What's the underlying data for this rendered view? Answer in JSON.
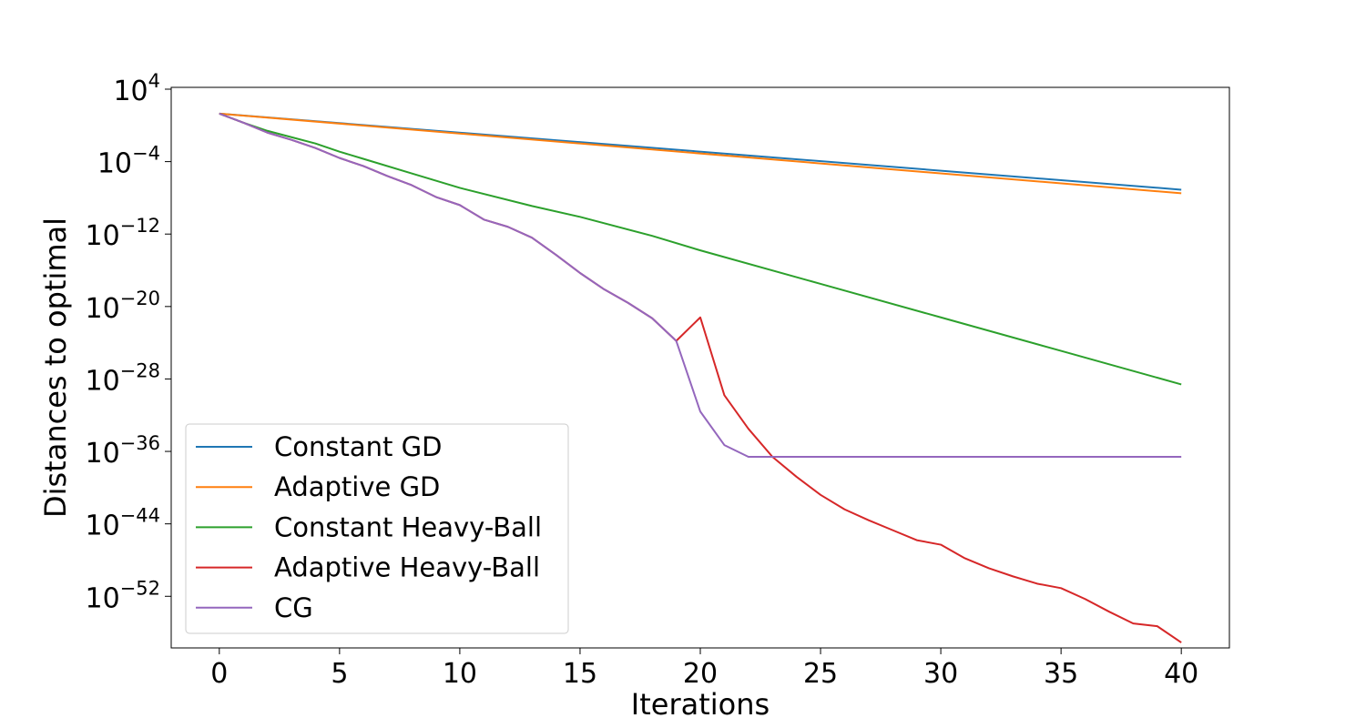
{
  "chart_data": {
    "type": "line",
    "xlabel": "Iterations",
    "ylabel": "Distances to optimal",
    "yscale": "log",
    "xlim": [
      -2,
      42
    ],
    "ylim_exponent": [
      4.2,
      -57.7
    ],
    "x_ticks": [
      0,
      5,
      10,
      15,
      20,
      25,
      30,
      35,
      40
    ],
    "y_ticks": [
      {
        "base": "10",
        "exp": "4",
        "value": 4
      },
      {
        "base": "10",
        "exp": "−4",
        "value": -4
      },
      {
        "base": "10",
        "exp": "−12",
        "value": -12
      },
      {
        "base": "10",
        "exp": "−20",
        "value": -20
      },
      {
        "base": "10",
        "exp": "−28",
        "value": -28
      },
      {
        "base": "10",
        "exp": "−36",
        "value": -36
      },
      {
        "base": "10",
        "exp": "−44",
        "value": -44
      },
      {
        "base": "10",
        "exp": "−52",
        "value": -52
      }
    ],
    "legend_position": "lower-left",
    "series": [
      {
        "name": "Constant GD",
        "color": "#1f77b4",
        "x": [
          0,
          40
        ],
        "log10_y": [
          1.3,
          -7.1
        ]
      },
      {
        "name": "Adaptive GD",
        "color": "#ff7f0e",
        "x": [
          0,
          40
        ],
        "log10_y": [
          1.3,
          -7.5
        ]
      },
      {
        "name": "Constant Heavy-Ball",
        "color": "#2ca02c",
        "x": [
          0,
          1,
          2,
          3,
          4,
          5,
          6,
          8,
          10,
          13,
          15,
          18,
          20,
          25,
          30,
          35,
          40
        ],
        "log10_y": [
          1.3,
          0.3,
          -0.6,
          -1.3,
          -2.0,
          -2.9,
          -3.7,
          -5.3,
          -6.9,
          -8.9,
          -10.1,
          -12.2,
          -13.8,
          -17.5,
          -21.2,
          -24.9,
          -28.6
        ]
      },
      {
        "name": "Adaptive Heavy-Ball",
        "color": "#d62728",
        "x": [
          0,
          1,
          2,
          3,
          4,
          5,
          6,
          7,
          8,
          9,
          10,
          11,
          12,
          13,
          14,
          15,
          16,
          17,
          18,
          19,
          20,
          21,
          22,
          23,
          24,
          25,
          26,
          27,
          28,
          29,
          30,
          31,
          32,
          33,
          34,
          35,
          36,
          37,
          38,
          39,
          40
        ],
        "log10_y": [
          1.3,
          0.3,
          -0.8,
          -1.6,
          -2.5,
          -3.6,
          -4.5,
          -5.6,
          -6.6,
          -7.9,
          -8.8,
          -10.4,
          -11.2,
          -12.4,
          -14.3,
          -16.3,
          -18.1,
          -19.6,
          -21.3,
          -23.8,
          -21.2,
          -29.8,
          -33.5,
          -36.6,
          -38.8,
          -40.8,
          -42.4,
          -43.6,
          -44.7,
          -45.8,
          -46.3,
          -47.8,
          -48.9,
          -49.8,
          -50.6,
          -51.1,
          -52.3,
          -53.7,
          -55.0,
          -55.3,
          -57.1
        ]
      },
      {
        "name": "CG",
        "color": "#9467bd",
        "x": [
          0,
          1,
          2,
          3,
          4,
          5,
          6,
          7,
          8,
          9,
          10,
          11,
          12,
          13,
          14,
          15,
          16,
          17,
          18,
          19,
          20,
          21,
          22,
          40
        ],
        "log10_y": [
          1.3,
          0.3,
          -0.8,
          -1.6,
          -2.5,
          -3.6,
          -4.5,
          -5.6,
          -6.6,
          -7.9,
          -8.8,
          -10.4,
          -11.2,
          -12.4,
          -14.3,
          -16.3,
          -18.1,
          -19.6,
          -21.3,
          -23.8,
          -31.6,
          -35.3,
          -36.6,
          -36.6
        ]
      }
    ]
  }
}
